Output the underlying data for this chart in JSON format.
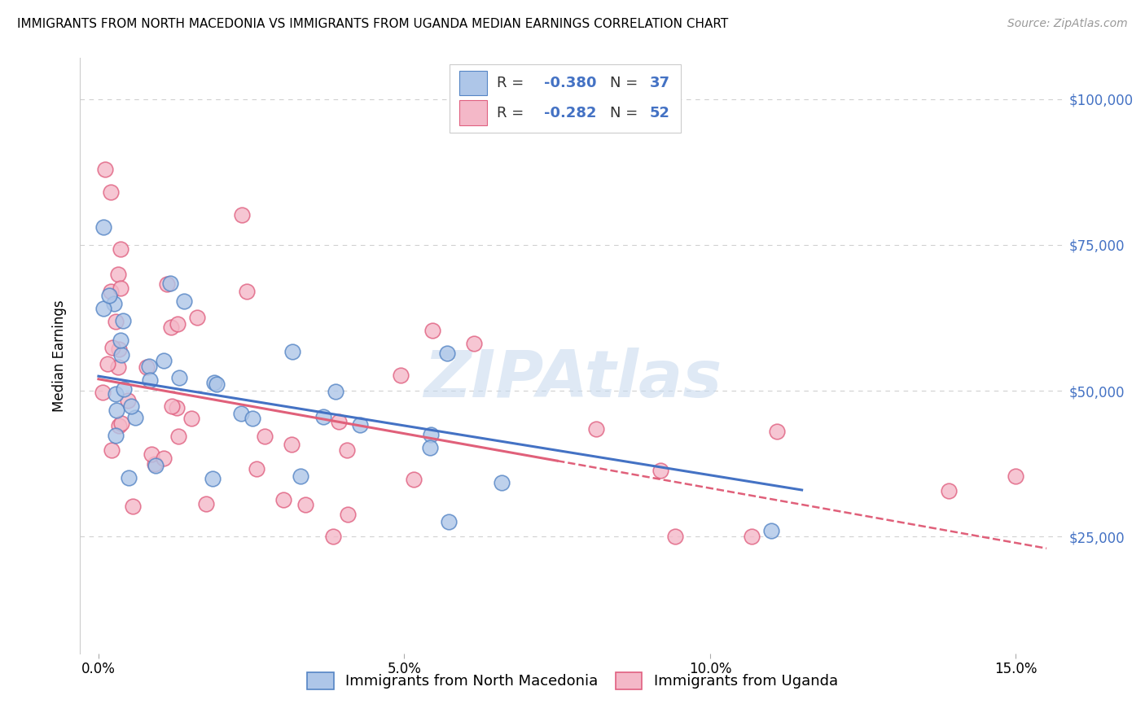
{
  "title": "IMMIGRANTS FROM NORTH MACEDONIA VS IMMIGRANTS FROM UGANDA MEDIAN EARNINGS CORRELATION CHART",
  "source": "Source: ZipAtlas.com",
  "ylabel": "Median Earnings",
  "xlim": [
    -0.3,
    15.8
  ],
  "ylim": [
    5000,
    107000
  ],
  "yticks": [
    25000,
    50000,
    75000,
    100000
  ],
  "ytick_labels": [
    "$25,000",
    "$50,000",
    "$75,000",
    "$100,000"
  ],
  "xticks": [
    0.0,
    5.0,
    10.0,
    15.0
  ],
  "xtick_labels": [
    "0.0%",
    "5.0%",
    "10.0%",
    "15.0%"
  ],
  "legend_r1": "-0.380",
  "legend_n1": "37",
  "legend_r2": "-0.282",
  "legend_n2": "52",
  "color_macedonia": "#aec6e8",
  "color_uganda": "#f4b8c8",
  "color_edge_macedonia": "#5585c5",
  "color_edge_uganda": "#e06080",
  "color_line_macedonia": "#4472c4",
  "color_line_uganda": "#e0607a",
  "color_axis": "#4472c4",
  "watermark": "ZIPAtlas",
  "label_macedonia": "Immigrants from North Macedonia",
  "label_uganda": "Immigrants from Uganda",
  "mac_line_x0": 0.0,
  "mac_line_x1": 11.5,
  "mac_line_y0": 52500,
  "mac_line_y1": 33000,
  "uga_solid_x0": 0.0,
  "uga_solid_x1": 7.5,
  "uga_solid_y0": 52000,
  "uga_solid_y1": 38000,
  "uga_dash_x0": 7.5,
  "uga_dash_x1": 15.5,
  "uga_dash_y0": 38000,
  "uga_dash_y1": 23000,
  "background_color": "#ffffff",
  "grid_color": "#d0d0d0",
  "title_fontsize": 11,
  "axis_label_fontsize": 12,
  "tick_fontsize": 12,
  "legend_fontsize": 13,
  "scatter_size": 180
}
